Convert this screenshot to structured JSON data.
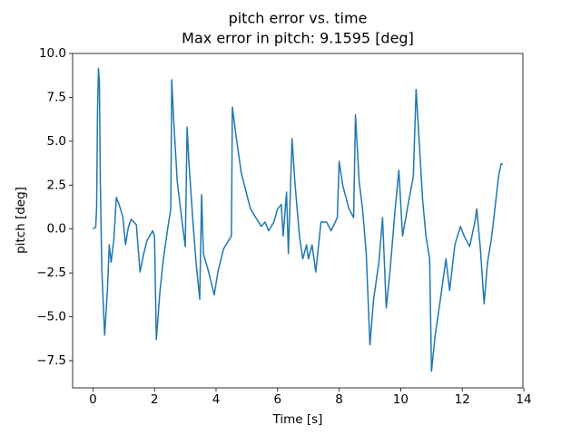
{
  "chart_data": {
    "type": "line",
    "title": "pitch error vs. time",
    "subtitle": "Max error in pitch: 9.1595 [deg]",
    "x_label": "Time [s]",
    "y_label": "pitch [deg]",
    "color": "#1f77b4",
    "xlim": [
      -0.66,
      13.97
    ],
    "ylim": [
      -9.05,
      10.0
    ],
    "xticks": [
      0,
      2,
      4,
      6,
      8,
      10,
      12,
      14
    ],
    "yticks": [
      {
        "value": -7.5,
        "label": "−7.5"
      },
      {
        "value": -5,
        "label": "−5.0"
      },
      {
        "value": -2.5,
        "label": "−2.5"
      },
      {
        "value": 0,
        "label": "0.0"
      },
      2.5,
      {
        "value": 5,
        "label": "5.0"
      },
      7.5,
      {
        "value": 10,
        "label": "10.0"
      }
    ],
    "x": [
      0.0,
      0.09,
      0.12,
      0.15,
      0.18,
      0.21,
      0.24,
      0.29,
      0.38,
      0.47,
      0.53,
      0.59,
      0.68,
      0.76,
      0.85,
      0.97,
      1.06,
      1.15,
      1.24,
      1.41,
      1.53,
      1.65,
      1.76,
      1.94,
      2.0,
      2.06,
      2.18,
      2.29,
      2.44,
      2.53,
      2.56,
      2.62,
      2.74,
      2.88,
      3.0,
      3.06,
      3.12,
      3.24,
      3.35,
      3.47,
      3.53,
      3.59,
      3.76,
      3.94,
      4.06,
      4.24,
      4.41,
      4.5,
      4.53,
      4.65,
      4.82,
      5.0,
      5.12,
      5.29,
      5.47,
      5.59,
      5.71,
      5.88,
      6.0,
      6.12,
      6.18,
      6.29,
      6.35,
      6.47,
      6.56,
      6.71,
      6.82,
      6.94,
      7.0,
      7.12,
      7.24,
      7.41,
      7.59,
      7.74,
      7.94,
      8.0,
      8.12,
      8.32,
      8.47,
      8.53,
      8.65,
      8.76,
      8.88,
      9.0,
      9.12,
      9.29,
      9.41,
      9.53,
      9.65,
      9.82,
      9.94,
      10.06,
      10.24,
      10.41,
      10.5,
      10.59,
      10.71,
      10.82,
      10.94,
      11.0,
      11.12,
      11.29,
      11.47,
      11.59,
      11.76,
      11.94,
      12.06,
      12.24,
      12.41,
      12.47,
      12.59,
      12.71,
      12.82,
      12.94,
      13.06,
      13.18,
      13.26,
      13.32
    ],
    "values": [
      0.0,
      0.1,
      1.2,
      6.8,
      9.16,
      8.4,
      2.7,
      -2.4,
      -6.05,
      -3.5,
      -0.9,
      -1.9,
      -0.6,
      1.8,
      1.4,
      0.7,
      -0.9,
      0.1,
      0.55,
      0.25,
      -2.45,
      -1.4,
      -0.65,
      -0.1,
      -0.4,
      -6.3,
      -3.5,
      -1.7,
      0.15,
      1.15,
      8.5,
      6.3,
      2.7,
      0.65,
      -1.0,
      5.8,
      3.75,
      0.65,
      -1.9,
      -4.0,
      1.95,
      -1.4,
      -2.45,
      -3.75,
      -2.45,
      -1.15,
      -0.65,
      -0.4,
      6.95,
      5.3,
      3.2,
      1.95,
      1.15,
      0.65,
      0.15,
      0.4,
      -0.1,
      0.4,
      1.15,
      1.4,
      -0.4,
      2.1,
      -1.4,
      5.15,
      2.7,
      -0.4,
      -1.7,
      -0.9,
      -1.7,
      -0.9,
      -2.45,
      0.4,
      0.4,
      -0.1,
      0.65,
      3.85,
      2.45,
      1.15,
      0.65,
      6.5,
      2.7,
      1.15,
      -1.4,
      -6.6,
      -4.0,
      -1.9,
      0.65,
      -4.5,
      -2.45,
      1.15,
      3.35,
      -0.4,
      1.4,
      3.0,
      7.95,
      5.3,
      1.7,
      -0.4,
      -1.7,
      -8.1,
      -6.05,
      -4.0,
      -1.7,
      -3.5,
      -0.9,
      0.15,
      -0.4,
      -1.0,
      0.4,
      1.15,
      -1.15,
      -4.25,
      -1.9,
      -0.65,
      1.15,
      3.0,
      3.7,
      3.7
    ]
  }
}
